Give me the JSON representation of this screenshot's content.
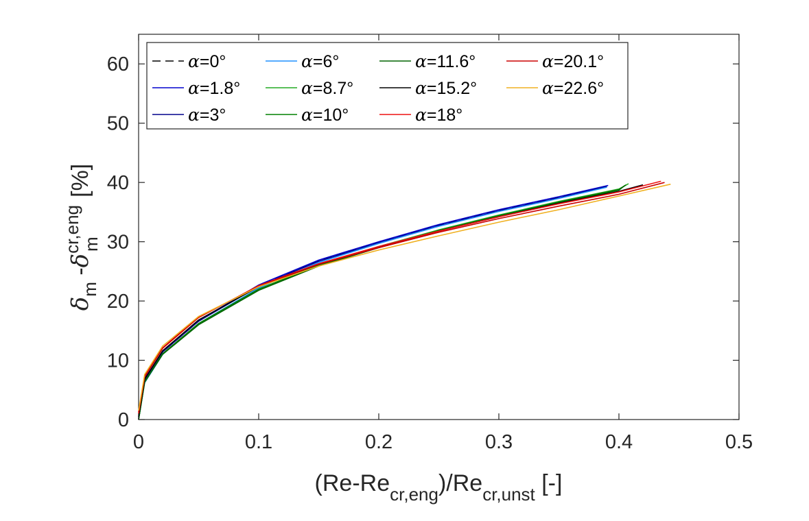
{
  "chart_data": {
    "type": "line",
    "xlabel": {
      "main1": "(Re-Re",
      "sub1": "cr,eng",
      "main2": ")/Re",
      "sub2": "cr,unst",
      "main3": " [-]"
    },
    "ylabel": {
      "sym1": "δ",
      "sub1": "m",
      "main": " -",
      "sym2": "δ",
      "sup": "cr,eng",
      "sub2": "m",
      "unit": " [%]"
    },
    "xlim": [
      0,
      0.5
    ],
    "ylim": [
      0,
      65
    ],
    "xticks": [
      0,
      0.1,
      0.2,
      0.3,
      0.4,
      0.5
    ],
    "xtick_labels": [
      "0",
      "0.1",
      "0.2",
      "0.3",
      "0.4",
      "0.5"
    ],
    "yticks": [
      0,
      10,
      20,
      30,
      40,
      50,
      60
    ],
    "ytick_labels": [
      "0",
      "10",
      "20",
      "30",
      "40",
      "50",
      "60"
    ],
    "grid": false,
    "legend_placement": "top-left",
    "series": [
      {
        "name": "=0°",
        "color": "#000000",
        "dash": true,
        "x": [
          0,
          0.005,
          0.02,
          0.05,
          0.1,
          0.15,
          0.2,
          0.25,
          0.3,
          0.35,
          0.39
        ],
        "y": [
          0,
          6.8,
          11.4,
          16.6,
          22.6,
          26.8,
          29.9,
          32.8,
          35.3,
          37.5,
          39.4
        ]
      },
      {
        "name": "=1.8°",
        "color": "#0000cd",
        "dash": false,
        "x": [
          0,
          0.005,
          0.02,
          0.05,
          0.1,
          0.15,
          0.2,
          0.25,
          0.3,
          0.35,
          0.391
        ],
        "y": [
          0.5,
          6.9,
          11.5,
          16.7,
          22.7,
          26.9,
          30.0,
          32.9,
          35.4,
          37.6,
          39.5
        ]
      },
      {
        "name": "=3°",
        "color": "#00008b",
        "dash": false,
        "x": [
          0,
          0.005,
          0.02,
          0.05,
          0.1,
          0.15,
          0.2,
          0.25,
          0.3,
          0.35,
          0.39
        ],
        "y": [
          0.3,
          6.7,
          11.4,
          16.6,
          22.5,
          26.7,
          29.8,
          32.7,
          35.2,
          37.4,
          39.3
        ]
      },
      {
        "name": "=6°",
        "color": "#1e90ff",
        "dash": false,
        "x": [
          0,
          0.005,
          0.02,
          0.05,
          0.1,
          0.15,
          0.2,
          0.25,
          0.3,
          0.35,
          0.39
        ],
        "y": [
          0,
          6.2,
          11.0,
          16.2,
          22.2,
          26.5,
          29.7,
          32.6,
          35.1,
          37.3,
          39.2
        ]
      },
      {
        "name": "=8.7°",
        "color": "#22aa22",
        "dash": false,
        "x": [
          0,
          0.005,
          0.02,
          0.05,
          0.1,
          0.15,
          0.2,
          0.25,
          0.3,
          0.35,
          0.4,
          0.408
        ],
        "y": [
          0,
          6.3,
          11.1,
          16.2,
          22.0,
          26.1,
          29.2,
          32.0,
          34.5,
          36.8,
          38.9,
          39.8
        ]
      },
      {
        "name": "=10°",
        "color": "#008000",
        "dash": false,
        "x": [
          0,
          0.005,
          0.02,
          0.05,
          0.1,
          0.15,
          0.2,
          0.25,
          0.3,
          0.35,
          0.4,
          0.406
        ],
        "y": [
          0,
          6.4,
          11.1,
          16.2,
          22.0,
          26.0,
          29.1,
          31.9,
          34.4,
          36.7,
          38.8,
          39.6
        ]
      },
      {
        "name": "=11.6°",
        "color": "#006400",
        "dash": false,
        "x": [
          0,
          0.005,
          0.02,
          0.05,
          0.1,
          0.15,
          0.2,
          0.25,
          0.3,
          0.35,
          0.4,
          0.405
        ],
        "y": [
          0,
          6.3,
          11.0,
          16.0,
          21.8,
          25.9,
          29.0,
          31.8,
          34.3,
          36.6,
          38.7,
          39.5
        ]
      },
      {
        "name": "=15.2°",
        "color": "#000000",
        "dash": false,
        "x": [
          0,
          0.005,
          0.02,
          0.05,
          0.1,
          0.15,
          0.2,
          0.25,
          0.3,
          0.35,
          0.4,
          0.42
        ],
        "y": [
          0.5,
          6.8,
          11.6,
          16.8,
          22.4,
          26.2,
          29.1,
          31.8,
          34.2,
          36.5,
          38.5,
          39.6
        ]
      },
      {
        "name": "=18°",
        "color": "#ee1111",
        "dash": false,
        "x": [
          0,
          0.005,
          0.02,
          0.05,
          0.1,
          0.15,
          0.2,
          0.25,
          0.3,
          0.35,
          0.4,
          0.435
        ],
        "y": [
          1.0,
          7.2,
          12.0,
          17.2,
          22.6,
          26.3,
          29.2,
          31.8,
          34.2,
          36.4,
          38.4,
          40.2
        ]
      },
      {
        "name": "=20.1°",
        "color": "#cc0000",
        "dash": false,
        "x": [
          0,
          0.005,
          0.02,
          0.05,
          0.1,
          0.15,
          0.2,
          0.25,
          0.3,
          0.35,
          0.4,
          0.438
        ],
        "y": [
          1.2,
          7.3,
          12.1,
          17.3,
          22.5,
          26.2,
          29.0,
          31.6,
          33.9,
          36.0,
          38.0,
          40.0
        ]
      },
      {
        "name": "=22.6°",
        "color": "#f0b020",
        "dash": false,
        "x": [
          0,
          0.005,
          0.02,
          0.05,
          0.1,
          0.15,
          0.2,
          0.25,
          0.3,
          0.35,
          0.4,
          0.443
        ],
        "y": [
          1.5,
          7.6,
          12.4,
          17.4,
          22.4,
          25.9,
          28.6,
          31.0,
          33.3,
          35.4,
          37.7,
          39.7
        ]
      }
    ]
  }
}
